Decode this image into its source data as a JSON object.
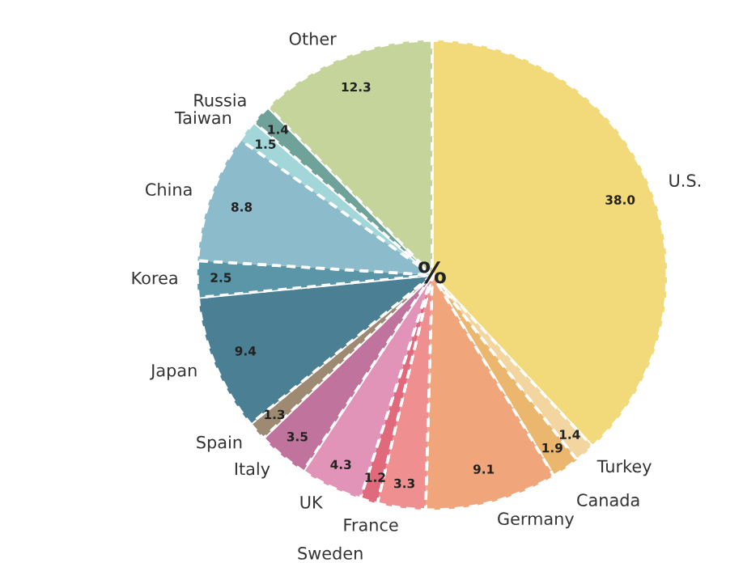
{
  "chart_data": {
    "type": "pie",
    "categories": [
      "U.S.",
      "Turkey",
      "Canada",
      "Germany",
      "France",
      "Sweden",
      "UK",
      "Italy",
      "Spain",
      "Japan",
      "Korea",
      "China",
      "Taiwan",
      "Russia",
      "Other"
    ],
    "values": [
      38.0,
      1.4,
      1.9,
      9.1,
      3.3,
      1.2,
      4.3,
      3.5,
      1.3,
      9.4,
      2.5,
      8.8,
      1.5,
      1.4,
      12.3
    ],
    "colors": [
      "#f2da7a",
      "#f3d5a0",
      "#ebb66d",
      "#f0a67a",
      "#ef8f8f",
      "#e06a7c",
      "#e294b8",
      "#c0739c",
      "#9e8a72",
      "#4a7f94",
      "#5a95a8",
      "#8cbccb",
      "#a2d6d8",
      "#6fa39a",
      "#c5d49a"
    ],
    "value_labels": [
      "38.0",
      "1.4",
      "1.9",
      "9.1",
      "3.3",
      "1.2",
      "4.3",
      "3.5",
      "1.3",
      "9.4",
      "2.5",
      "8.8",
      "1.5",
      "1.4",
      "12.3"
    ],
    "annotations": [
      "%"
    ]
  }
}
